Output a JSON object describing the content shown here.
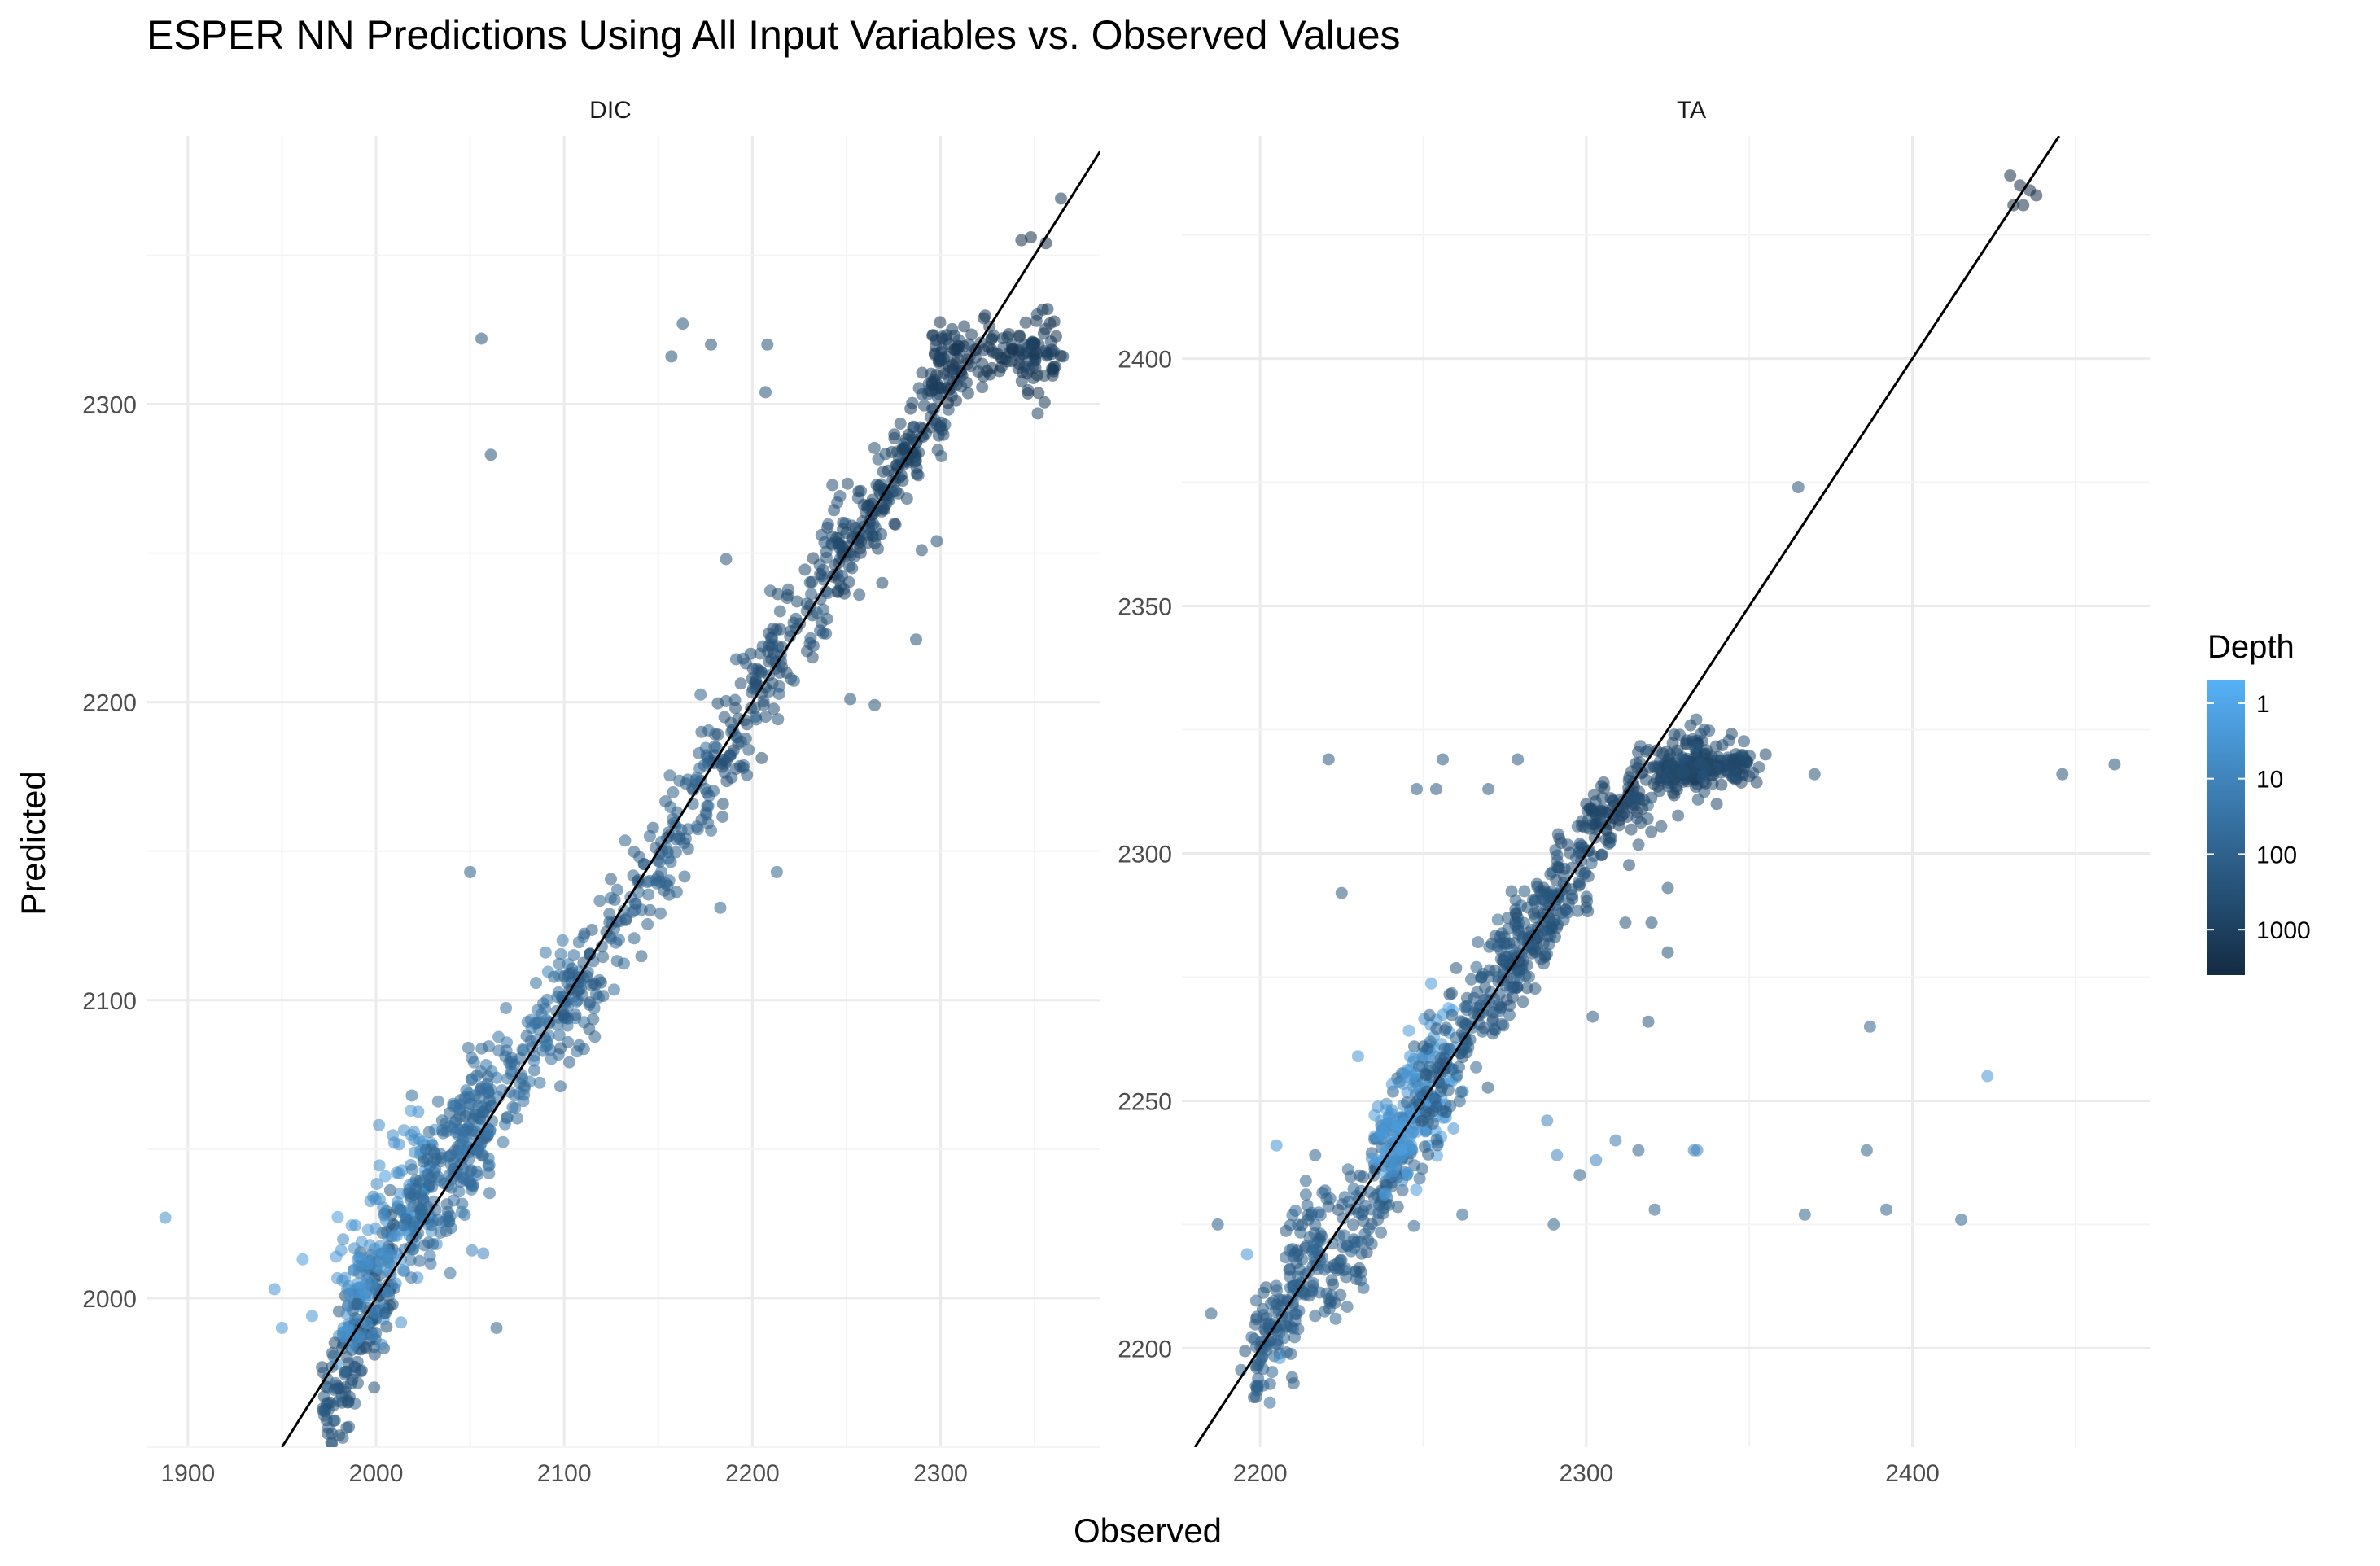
{
  "title": "ESPER NN Predictions Using All Input Variables vs. Observed Values",
  "xlabel": "Observed",
  "ylabel": "Predicted",
  "legend": {
    "title": "Depth",
    "scale": "log",
    "labels": [
      "1",
      "10",
      "100",
      "1000"
    ],
    "values": [
      1,
      10,
      100,
      1000
    ],
    "range": [
      0.5,
      4000
    ],
    "color_low": "#56B1F7",
    "color_high": "#132B43",
    "placement": "right"
  },
  "chart_data": [
    {
      "type": "scatter",
      "panel": "DIC",
      "strip_label": "DIC",
      "xlim": [
        1878,
        2385
      ],
      "ylim": [
        1950,
        2390
      ],
      "x_ticks": [
        1900,
        2000,
        2100,
        2200,
        2300
      ],
      "y_ticks": [
        2000,
        2100,
        2200,
        2300
      ],
      "x_tick_labels": [
        "1900",
        "2000",
        "2100",
        "2200",
        "2300"
      ],
      "y_tick_labels": [
        "2000",
        "2100",
        "2200",
        "2300"
      ],
      "reference_line": "y = x",
      "point_alpha": 0.55,
      "points": [
        [
          1888,
          2027,
          5
        ],
        [
          2056,
          2322,
          300
        ],
        [
          2061,
          2283,
          300
        ],
        [
          2163,
          2327,
          300
        ],
        [
          2157,
          2316,
          300
        ],
        [
          2178,
          2320,
          300
        ],
        [
          2208,
          2320,
          300
        ],
        [
          2207,
          2304,
          300
        ],
        [
          2050,
          2143,
          150
        ],
        [
          2213,
          2143,
          100
        ],
        [
          2186,
          2248,
          300
        ],
        [
          2183,
          2131,
          100
        ],
        [
          2287,
          2221,
          300
        ],
        [
          2265,
          2199,
          300
        ],
        [
          2252,
          2201,
          300
        ],
        [
          2269,
          2240,
          600
        ],
        [
          2064,
          1990,
          100
        ],
        [
          2051,
          2016,
          10
        ],
        [
          2057,
          2015,
          10
        ],
        [
          1946,
          2003,
          3
        ],
        [
          1950,
          1990,
          3
        ],
        [
          1961,
          2013,
          2
        ],
        [
          1966,
          1994,
          3
        ],
        [
          2019,
          2068,
          60
        ],
        [
          2045,
          2045,
          40
        ],
        [
          2360,
          2311,
          1500
        ],
        [
          2365,
          2316,
          1500
        ],
        [
          2364,
          2369,
          1500
        ],
        [
          2343,
          2355,
          3000
        ],
        [
          2348,
          2356,
          3000
        ],
        [
          2356,
          2354,
          3000
        ],
        [
          2304,
          2311,
          1000
        ],
        [
          2301,
          2322,
          1000
        ],
        [
          2326,
          2326,
          1200
        ],
        [
          2338,
          2320,
          1200
        ],
        [
          2290,
          2251,
          400
        ],
        [
          2298,
          2254,
          400
        ],
        [
          2268,
          2270,
          600
        ],
        [
          2246,
          2253,
          500
        ],
        [
          2229,
          2233,
          400
        ],
        [
          2236,
          2243,
          400
        ],
        [
          2160,
          2163,
          150
        ],
        [
          2120,
          2118,
          120
        ],
        [
          2080,
          2088,
          80
        ],
        [
          2100,
          2108,
          100
        ],
        [
          2140,
          2148,
          150
        ],
        [
          2232,
          2215,
          400
        ],
        [
          2173,
          2190,
          200
        ],
        [
          1972,
          1975,
          200
        ],
        [
          1985,
          1965,
          300
        ],
        [
          1999,
          1970,
          300
        ],
        [
          1978,
          1985,
          400
        ],
        [
          1990,
          1998,
          300
        ],
        [
          2005,
          1995,
          200
        ]
      ],
      "trend_segments": [
        {
          "x": [
            1972,
            2010
          ],
          "y": [
            1960,
            2015
          ],
          "depth": 200,
          "jitter_y": 10
        },
        {
          "x": [
            1980,
            2030
          ],
          "y": [
            1995,
            2040
          ],
          "depth": 5,
          "jitter_y": 14
        },
        {
          "x": [
            2015,
            2060
          ],
          "y": [
            2020,
            2065
          ],
          "depth": 60,
          "jitter_y": 12
        },
        {
          "x": [
            2040,
            2110
          ],
          "y": [
            2045,
            2110
          ],
          "depth": 40,
          "jitter_y": 10
        },
        {
          "x": [
            2100,
            2180
          ],
          "y": [
            2095,
            2180
          ],
          "depth": 120,
          "jitter_y": 10
        },
        {
          "x": [
            2180,
            2250
          ],
          "y": [
            2180,
            2255
          ],
          "depth": 300,
          "jitter_y": 9
        },
        {
          "x": [
            2245,
            2300
          ],
          "y": [
            2245,
            2300
          ],
          "depth": 600,
          "jitter_y": 8
        },
        {
          "x": [
            2295,
            2362
          ],
          "y": [
            2312,
            2318
          ],
          "depth": 1300,
          "jitter_y": 6
        }
      ]
    },
    {
      "type": "scatter",
      "panel": "TA",
      "strip_label": "TA",
      "xlim": [
        2176,
        2473
      ],
      "ylim": [
        2180,
        2445
      ],
      "x_ticks": [
        2200,
        2300,
        2400
      ],
      "y_ticks": [
        2200,
        2250,
        2300,
        2350,
        2400
      ],
      "x_tick_labels": [
        "2200",
        "2300",
        "2400"
      ],
      "y_tick_labels": [
        "2200",
        "2250",
        "2300",
        "2350",
        "2400"
      ],
      "reference_line": "y = x",
      "point_alpha": 0.55,
      "points": [
        [
          2187,
          2225,
          150
        ],
        [
          2185,
          2207,
          150
        ],
        [
          2205,
          2241,
          4
        ],
        [
          2196,
          2219,
          3
        ],
        [
          2206,
          2198,
          3
        ],
        [
          2199,
          2192,
          100
        ],
        [
          2221,
          2319,
          200
        ],
        [
          2225,
          2292,
          200
        ],
        [
          2248,
          2313,
          200
        ],
        [
          2254,
          2313,
          200
        ],
        [
          2256,
          2319,
          200
        ],
        [
          2270,
          2313,
          200
        ],
        [
          2279,
          2319,
          200
        ],
        [
          2365,
          2374,
          300
        ],
        [
          2370,
          2316,
          300
        ],
        [
          2446,
          2316,
          300
        ],
        [
          2462,
          2318,
          300
        ],
        [
          2387,
          2265,
          100
        ],
        [
          2423,
          2255,
          3
        ],
        [
          2386,
          2240,
          100
        ],
        [
          2392,
          2228,
          100
        ],
        [
          2415,
          2226,
          100
        ],
        [
          2367,
          2227,
          100
        ],
        [
          2321,
          2228,
          100
        ],
        [
          2333,
          2240,
          10
        ],
        [
          2334,
          2240,
          10
        ],
        [
          2316,
          2240,
          100
        ],
        [
          2309,
          2242,
          20
        ],
        [
          2303,
          2238,
          10
        ],
        [
          2298,
          2235,
          100
        ],
        [
          2291,
          2239,
          10
        ],
        [
          2288,
          2246,
          10
        ],
        [
          2290,
          2225,
          100
        ],
        [
          2262,
          2227,
          100
        ],
        [
          2302,
          2267,
          200
        ],
        [
          2319,
          2266,
          200
        ],
        [
          2325,
          2293,
          300
        ],
        [
          2325,
          2280,
          300
        ],
        [
          2320,
          2286,
          300
        ],
        [
          2312,
          2286,
          300
        ],
        [
          2327,
          2324,
          600
        ],
        [
          2345,
          2319,
          600
        ],
        [
          2355,
          2320,
          600
        ],
        [
          2340,
          2310,
          600
        ],
        [
          2305,
          2309,
          600
        ],
        [
          2300,
          2310,
          600
        ],
        [
          2433,
          2435,
          3000
        ],
        [
          2436,
          2434,
          3000
        ],
        [
          2430,
          2437,
          3000
        ],
        [
          2438,
          2433,
          3000
        ],
        [
          2431,
          2431,
          3000
        ],
        [
          2434,
          2431,
          3000
        ],
        [
          2246,
          2259,
          3
        ],
        [
          2230,
          2259,
          3
        ]
      ],
      "trend_segments": [
        {
          "x": [
            2198,
            2220
          ],
          "y": [
            2196,
            2225
          ],
          "depth": 120,
          "jitter_y": 6
        },
        {
          "x": [
            2220,
            2250
          ],
          "y": [
            2215,
            2248
          ],
          "depth": 120,
          "jitter_y": 7
        },
        {
          "x": [
            2235,
            2258
          ],
          "y": [
            2238,
            2258
          ],
          "depth": 3,
          "jitter_y": 6
        },
        {
          "x": [
            2250,
            2282
          ],
          "y": [
            2248,
            2285
          ],
          "depth": 150,
          "jitter_y": 6
        },
        {
          "x": [
            2275,
            2300
          ],
          "y": [
            2275,
            2300
          ],
          "depth": 250,
          "jitter_y": 5
        },
        {
          "x": [
            2300,
            2335
          ],
          "y": [
            2305,
            2321
          ],
          "depth": 500,
          "jitter_y": 4
        },
        {
          "x": [
            2325,
            2350
          ],
          "y": [
            2317,
            2318
          ],
          "depth": 500,
          "jitter_y": 2
        }
      ]
    }
  ]
}
